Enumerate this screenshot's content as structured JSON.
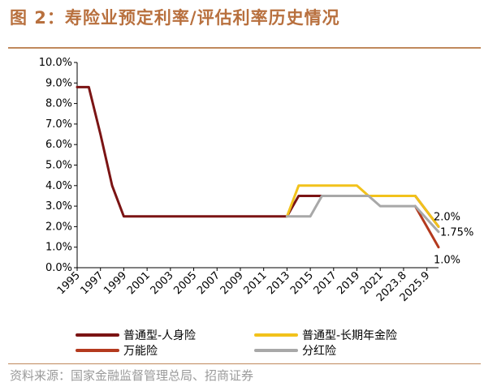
{
  "figure": {
    "title": "图 2：寿险业预定利率/评估利率历史情况",
    "source": "资料来源：国家金融监督管理总局、招商证券"
  },
  "chart_data": {
    "type": "line",
    "ylim": [
      0,
      10
    ],
    "y_ticks": [
      "0.0%",
      "1.0%",
      "2.0%",
      "3.0%",
      "4.0%",
      "5.0%",
      "6.0%",
      "7.0%",
      "8.0%",
      "9.0%",
      "10.0%"
    ],
    "x_ticks": [
      "1995",
      "1997",
      "1999",
      "2001",
      "2003",
      "2005",
      "2007",
      "2009",
      "2011",
      "2013",
      "2015",
      "2017",
      "2019",
      "2021",
      "2023.8",
      "2025.9"
    ],
    "grid": false,
    "legend_placement": "bottom",
    "series": [
      {
        "name": "普通型-人身险",
        "color": "#7b1414",
        "x": [
          0,
          1,
          2,
          3,
          4,
          18,
          19,
          25,
          27,
          29,
          31
        ],
        "y": [
          8.8,
          8.8,
          6.5,
          4.0,
          2.5,
          2.5,
          3.5,
          3.5,
          3.5,
          3.5,
          2.0
        ]
      },
      {
        "name": "普通型-长期年金险",
        "color": "#f2c21b",
        "x": [
          18,
          19,
          24,
          25,
          29,
          31
        ],
        "y": [
          2.5,
          4.0,
          4.0,
          3.5,
          3.5,
          2.0
        ]
      },
      {
        "name": "万能险",
        "color": "#b43a1e",
        "x": [
          29,
          30,
          31
        ],
        "y": [
          3.0,
          2.0,
          1.0
        ]
      },
      {
        "name": "分红险",
        "color": "#a8a8a8",
        "x": [
          18,
          20,
          21,
          25,
          26,
          29,
          31
        ],
        "y": [
          2.5,
          2.5,
          3.5,
          3.5,
          3.0,
          3.0,
          1.75
        ]
      }
    ],
    "annotations": [
      {
        "text": "2.0%",
        "x": 31,
        "y": 2.0,
        "position": "above"
      },
      {
        "text": "1.75%",
        "x": 31,
        "y": 1.75,
        "position": "right"
      },
      {
        "text": "1.0%",
        "x": 31,
        "y": 1.0,
        "position": "below"
      }
    ]
  }
}
